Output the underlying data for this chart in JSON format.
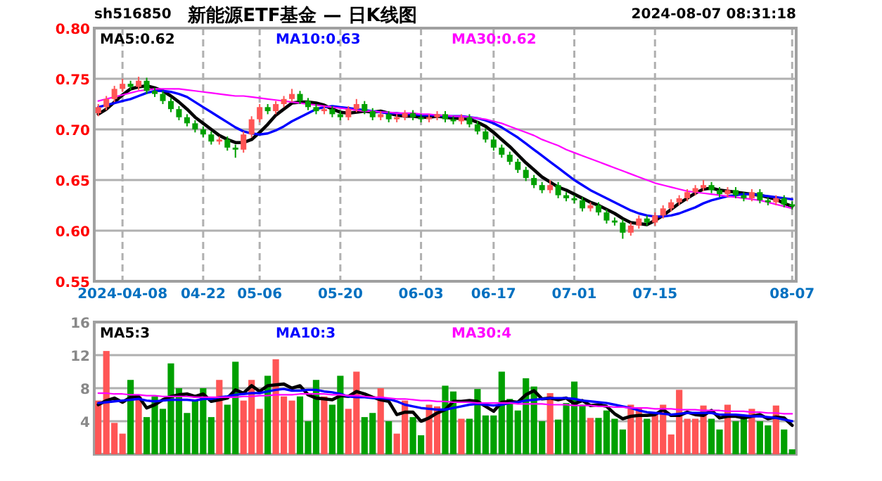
{
  "chart_data": [
    {
      "type": "candlestick",
      "title": "新能源ETF基金 — 日K线图",
      "annotations": [
        "sh516850",
        "2024-08-07 08:31:18"
      ],
      "categories": [
        null,
        null,
        null,
        "2024-04-08",
        null,
        null,
        null,
        null,
        null,
        null,
        null,
        null,
        null,
        "04-22",
        null,
        null,
        null,
        null,
        null,
        null,
        "05-06",
        null,
        null,
        null,
        null,
        null,
        null,
        null,
        null,
        null,
        "05-20",
        null,
        null,
        null,
        null,
        null,
        null,
        null,
        null,
        null,
        "06-03",
        null,
        null,
        null,
        null,
        null,
        null,
        null,
        null,
        "06-17",
        null,
        null,
        null,
        null,
        null,
        null,
        null,
        null,
        null,
        "07-01",
        null,
        null,
        null,
        null,
        null,
        null,
        null,
        null,
        null,
        "07-15",
        null,
        null,
        null,
        null,
        null,
        null,
        null,
        null,
        null,
        null,
        null,
        null,
        null,
        null,
        null,
        null,
        "08-07"
      ],
      "ohlc": [
        [
          0.716,
          0.725,
          0.713,
          0.722
        ],
        [
          0.722,
          0.733,
          0.719,
          0.73
        ],
        [
          0.73,
          0.743,
          0.727,
          0.74
        ],
        [
          0.74,
          0.75,
          0.737,
          0.745
        ],
        [
          0.745,
          0.748,
          0.739,
          0.742
        ],
        [
          0.742,
          0.752,
          0.739,
          0.748
        ],
        [
          0.748,
          0.751,
          0.735,
          0.738
        ],
        [
          0.738,
          0.741,
          0.732,
          0.735
        ],
        [
          0.735,
          0.738,
          0.725,
          0.728
        ],
        [
          0.728,
          0.731,
          0.717,
          0.72
        ],
        [
          0.72,
          0.723,
          0.709,
          0.712
        ],
        [
          0.712,
          0.715,
          0.703,
          0.706
        ],
        [
          0.706,
          0.709,
          0.697,
          0.7
        ],
        [
          0.7,
          0.703,
          0.692,
          0.695
        ],
        [
          0.695,
          0.698,
          0.685,
          0.688
        ],
        [
          0.688,
          0.693,
          0.685,
          0.69
        ],
        [
          0.69,
          0.693,
          0.679,
          0.682
        ],
        [
          0.682,
          0.685,
          0.672,
          0.68
        ],
        [
          0.68,
          0.698,
          0.677,
          0.695
        ],
        [
          0.695,
          0.713,
          0.692,
          0.71
        ],
        [
          0.71,
          0.725,
          0.707,
          0.722
        ],
        [
          0.722,
          0.725,
          0.715,
          0.718
        ],
        [
          0.718,
          0.728,
          0.715,
          0.725
        ],
        [
          0.725,
          0.733,
          0.722,
          0.73
        ],
        [
          0.73,
          0.74,
          0.727,
          0.735
        ],
        [
          0.735,
          0.738,
          0.725,
          0.728
        ],
        [
          0.728,
          0.731,
          0.719,
          0.722
        ],
        [
          0.722,
          0.725,
          0.715,
          0.718
        ],
        [
          0.718,
          0.723,
          0.715,
          0.72
        ],
        [
          0.72,
          0.723,
          0.712,
          0.715
        ],
        [
          0.715,
          0.718,
          0.709,
          0.712
        ],
        [
          0.712,
          0.723,
          0.709,
          0.72
        ],
        [
          0.72,
          0.73,
          0.717,
          0.725
        ],
        [
          0.725,
          0.728,
          0.715,
          0.718
        ],
        [
          0.718,
          0.721,
          0.709,
          0.712
        ],
        [
          0.712,
          0.718,
          0.709,
          0.715
        ],
        [
          0.715,
          0.718,
          0.707,
          0.71
        ],
        [
          0.71,
          0.715,
          0.707,
          0.712
        ],
        [
          0.712,
          0.719,
          0.709,
          0.716
        ],
        [
          0.716,
          0.719,
          0.709,
          0.712
        ],
        [
          0.712,
          0.715,
          0.707,
          0.71
        ],
        [
          0.71,
          0.715,
          0.707,
          0.712
        ],
        [
          0.712,
          0.718,
          0.709,
          0.715
        ],
        [
          0.715,
          0.718,
          0.707,
          0.71
        ],
        [
          0.71,
          0.713,
          0.705,
          0.708
        ],
        [
          0.708,
          0.715,
          0.705,
          0.712
        ],
        [
          0.712,
          0.715,
          0.702,
          0.705
        ],
        [
          0.705,
          0.708,
          0.695,
          0.698
        ],
        [
          0.698,
          0.701,
          0.687,
          0.69
        ],
        [
          0.69,
          0.693,
          0.679,
          0.682
        ],
        [
          0.682,
          0.685,
          0.672,
          0.675
        ],
        [
          0.675,
          0.678,
          0.665,
          0.668
        ],
        [
          0.668,
          0.671,
          0.657,
          0.66
        ],
        [
          0.66,
          0.663,
          0.649,
          0.652
        ],
        [
          0.652,
          0.655,
          0.642,
          0.645
        ],
        [
          0.645,
          0.648,
          0.637,
          0.64
        ],
        [
          0.64,
          0.65,
          0.637,
          0.645
        ],
        [
          0.645,
          0.648,
          0.632,
          0.635
        ],
        [
          0.635,
          0.638,
          0.629,
          0.632
        ],
        [
          0.632,
          0.635,
          0.627,
          0.63
        ],
        [
          0.63,
          0.633,
          0.619,
          0.622
        ],
        [
          0.622,
          0.628,
          0.619,
          0.625
        ],
        [
          0.625,
          0.628,
          0.615,
          0.618
        ],
        [
          0.618,
          0.621,
          0.607,
          0.61
        ],
        [
          0.61,
          0.613,
          0.605,
          0.608
        ],
        [
          0.608,
          0.611,
          0.592,
          0.598
        ],
        [
          0.598,
          0.608,
          0.595,
          0.605
        ],
        [
          0.605,
          0.615,
          0.602,
          0.612
        ],
        [
          0.612,
          0.615,
          0.605,
          0.608
        ],
        [
          0.608,
          0.618,
          0.605,
          0.615
        ],
        [
          0.615,
          0.625,
          0.612,
          0.622
        ],
        [
          0.622,
          0.631,
          0.619,
          0.628
        ],
        [
          0.628,
          0.635,
          0.625,
          0.632
        ],
        [
          0.632,
          0.641,
          0.629,
          0.638
        ],
        [
          0.638,
          0.645,
          0.635,
          0.642
        ],
        [
          0.642,
          0.65,
          0.639,
          0.645
        ],
        [
          0.645,
          0.648,
          0.637,
          0.64
        ],
        [
          0.64,
          0.643,
          0.633,
          0.636
        ],
        [
          0.636,
          0.643,
          0.633,
          0.64
        ],
        [
          0.64,
          0.643,
          0.632,
          0.635
        ],
        [
          0.635,
          0.638,
          0.629,
          0.632
        ],
        [
          0.632,
          0.641,
          0.629,
          0.638
        ],
        [
          0.638,
          0.641,
          0.627,
          0.63
        ],
        [
          0.63,
          0.633,
          0.625,
          0.628
        ],
        [
          0.628,
          0.635,
          0.625,
          0.632
        ],
        [
          0.632,
          0.635,
          0.623,
          0.626
        ],
        [
          0.626,
          0.629,
          0.621,
          0.624
        ]
      ],
      "series": [
        {
          "type": "line",
          "name": "MA5:0.62",
          "color": "#000000",
          "values": [
            0.715,
            0.72,
            0.727,
            0.734,
            0.74,
            0.742,
            0.743,
            0.741,
            0.738,
            0.733,
            0.727,
            0.72,
            0.712,
            0.706,
            0.7,
            0.694,
            0.69,
            0.687,
            0.687,
            0.69,
            0.697,
            0.705,
            0.714,
            0.72,
            0.726,
            0.727,
            0.727,
            0.726,
            0.724,
            0.72,
            0.717,
            0.716,
            0.717,
            0.718,
            0.717,
            0.718,
            0.716,
            0.714,
            0.713,
            0.713,
            0.712,
            0.712,
            0.713,
            0.712,
            0.711,
            0.711,
            0.71,
            0.707,
            0.703,
            0.697,
            0.69,
            0.683,
            0.675,
            0.667,
            0.66,
            0.653,
            0.648,
            0.643,
            0.64,
            0.636,
            0.632,
            0.628,
            0.625,
            0.621,
            0.617,
            0.612,
            0.608,
            0.607,
            0.606,
            0.61,
            0.615,
            0.621,
            0.627,
            0.632,
            0.637,
            0.641,
            0.642,
            0.64,
            0.639,
            0.638,
            0.637,
            0.636,
            0.635,
            0.633,
            0.631,
            0.627,
            0.624
          ]
        },
        {
          "type": "line",
          "name": "MA10:0.63",
          "color": "#0000ff",
          "values": [
            0.722,
            0.724,
            0.726,
            0.728,
            0.73,
            0.733,
            0.736,
            0.738,
            0.738,
            0.737,
            0.735,
            0.732,
            0.727,
            0.722,
            0.717,
            0.712,
            0.707,
            0.702,
            0.698,
            0.696,
            0.695,
            0.696,
            0.699,
            0.703,
            0.708,
            0.712,
            0.716,
            0.72,
            0.722,
            0.723,
            0.722,
            0.721,
            0.72,
            0.719,
            0.718,
            0.717,
            0.716,
            0.716,
            0.715,
            0.715,
            0.714,
            0.714,
            0.714,
            0.713,
            0.713,
            0.713,
            0.712,
            0.711,
            0.709,
            0.706,
            0.702,
            0.697,
            0.692,
            0.686,
            0.68,
            0.674,
            0.668,
            0.662,
            0.656,
            0.65,
            0.645,
            0.64,
            0.636,
            0.632,
            0.628,
            0.624,
            0.62,
            0.617,
            0.615,
            0.614,
            0.614,
            0.615,
            0.617,
            0.62,
            0.623,
            0.627,
            0.63,
            0.632,
            0.634,
            0.635,
            0.636,
            0.636,
            0.635,
            0.634,
            0.633,
            0.632,
            0.631
          ]
        },
        {
          "type": "line",
          "name": "MA30:0.62",
          "color": "#ff00ff",
          "values": [
            0.728,
            0.73,
            0.732,
            0.734,
            0.736,
            0.738,
            0.739,
            0.74,
            0.74,
            0.74,
            0.74,
            0.739,
            0.738,
            0.737,
            0.736,
            0.735,
            0.734,
            0.733,
            0.733,
            0.732,
            0.731,
            0.73,
            0.729,
            0.728,
            0.727,
            0.726,
            0.725,
            0.724,
            0.723,
            0.722,
            0.721,
            0.72,
            0.719,
            0.718,
            0.718,
            0.717,
            0.717,
            0.716,
            0.716,
            0.716,
            0.715,
            0.715,
            0.714,
            0.714,
            0.713,
            0.713,
            0.712,
            0.711,
            0.71,
            0.708,
            0.706,
            0.703,
            0.7,
            0.697,
            0.694,
            0.69,
            0.687,
            0.684,
            0.68,
            0.677,
            0.674,
            0.671,
            0.668,
            0.665,
            0.662,
            0.659,
            0.656,
            0.653,
            0.65,
            0.647,
            0.645,
            0.643,
            0.641,
            0.639,
            0.638,
            0.637,
            0.636,
            0.635,
            0.634,
            0.633,
            0.632,
            0.631,
            0.63,
            0.628,
            0.626,
            0.624,
            0.622
          ]
        }
      ],
      "ylim": [
        0.55,
        0.8
      ],
      "yticks": [
        {
          "value": 0.55,
          "label": "0.55"
        },
        {
          "value": 0.6,
          "label": "0.60"
        },
        {
          "value": 0.65,
          "label": "0.65"
        },
        {
          "value": 0.7,
          "label": "0.70"
        },
        {
          "value": 0.75,
          "label": "0.75"
        },
        {
          "value": 0.8,
          "label": "0.80"
        }
      ],
      "grid": true,
      "legend": "top"
    },
    {
      "type": "bar",
      "categories": [
        null,
        null,
        null,
        null,
        null,
        null,
        null,
        null,
        null,
        null,
        null,
        null,
        null,
        null,
        null,
        null,
        null,
        null,
        null,
        null,
        null,
        null,
        null,
        null,
        null,
        null,
        null,
        null,
        null,
        null,
        null,
        null,
        null,
        null,
        null,
        null,
        null,
        null,
        null,
        null,
        null,
        null,
        null,
        null,
        null,
        null,
        null,
        null,
        null,
        null,
        null,
        null,
        null,
        null,
        null,
        null,
        null,
        null,
        null,
        null,
        null,
        null,
        null,
        null,
        null,
        null,
        null,
        null,
        null,
        null,
        null,
        null,
        null,
        null,
        null,
        null,
        null,
        null,
        null,
        null,
        null,
        null,
        null,
        null,
        null,
        null,
        null
      ],
      "values": [
        6.5,
        12.5,
        3.8,
        2.5,
        9,
        7,
        4.5,
        7,
        5.5,
        11,
        8,
        5,
        6.5,
        8,
        4.5,
        9,
        6,
        11.2,
        6.5,
        9,
        5.5,
        9.5,
        11.5,
        7,
        6.5,
        7,
        4,
        9,
        7,
        6,
        9.5,
        5.5,
        10,
        4.5,
        5,
        8,
        4,
        2.5,
        6.5,
        4.5,
        2.3,
        6,
        5.8,
        8.3,
        7.6,
        4.3,
        4.3,
        7.9,
        4.7,
        4.7,
        10,
        6.7,
        5.3,
        9.2,
        8.2,
        4,
        7.4,
        4.2,
        6.2,
        8.8,
        6,
        4.4,
        4.4,
        5.3,
        4.3,
        3,
        6,
        5.7,
        4.3,
        5,
        6,
        2.4,
        7.8,
        4.3,
        4.3,
        5.9,
        4.3,
        3,
        6,
        4,
        4.5,
        5.5,
        4,
        3.5,
        5.9,
        3,
        0.6
      ],
      "colors": [
        "#ff5555",
        "#ff5555",
        "#ff5555",
        "#ff5555",
        "#00a000",
        "#ff5555",
        "#00a000",
        "#00a000",
        "#00a000",
        "#00a000",
        "#00a000",
        "#00a000",
        "#00a000",
        "#00a000",
        "#00a000",
        "#ff5555",
        "#00a000",
        "#00a000",
        "#ff5555",
        "#ff5555",
        "#ff5555",
        "#00a000",
        "#ff5555",
        "#ff5555",
        "#ff5555",
        "#00a000",
        "#00a000",
        "#00a000",
        "#ff5555",
        "#00a000",
        "#00a000",
        "#ff5555",
        "#ff5555",
        "#00a000",
        "#00a000",
        "#ff5555",
        "#00a000",
        "#ff5555",
        "#ff5555",
        "#00a000",
        "#00a000",
        "#ff5555",
        "#ff5555",
        "#00a000",
        "#00a000",
        "#ff5555",
        "#00a000",
        "#00a000",
        "#00a000",
        "#00a000",
        "#00a000",
        "#00a000",
        "#00a000",
        "#00a000",
        "#00a000",
        "#00a000",
        "#ff5555",
        "#00a000",
        "#00a000",
        "#00a000",
        "#00a000",
        "#ff5555",
        "#00a000",
        "#00a000",
        "#00a000",
        "#00a000",
        "#ff5555",
        "#ff5555",
        "#00a000",
        "#ff5555",
        "#ff5555",
        "#ff5555",
        "#ff5555",
        "#ff5555",
        "#ff5555",
        "#ff5555",
        "#00a000",
        "#00a000",
        "#ff5555",
        "#00a000",
        "#00a000",
        "#ff5555",
        "#00a000",
        "#00a000",
        "#ff5555",
        "#00a000",
        "#00a000"
      ],
      "series": [
        {
          "type": "line",
          "name": "MA5:3",
          "color": "#000000",
          "values": [
            6,
            6.5,
            6.8,
            6.3,
            6.9,
            7,
            5.6,
            6,
            6.6,
            7,
            7.2,
            7.3,
            7,
            7.3,
            6.4,
            6.6,
            6.8,
            7.8,
            7.4,
            8.3,
            7.6,
            8.3,
            8.4,
            8.5,
            8,
            8.3,
            7.2,
            6.8,
            6.7,
            6.6,
            7.1,
            7,
            7.6,
            7.3,
            6.9,
            6.6,
            6.4,
            4.8,
            5.1,
            5.1,
            4,
            4.4,
            5,
            5.4,
            6.4,
            6.4,
            6.5,
            6.4,
            5.8,
            5.2,
            6.3,
            6.4,
            6.3,
            7.2,
            7.7,
            6.7,
            6.8,
            6.6,
            6.8,
            6.1,
            6.5,
            5.9,
            6,
            5.8,
            4.9,
            4.3,
            4.6,
            4.7,
            4.7,
            4.8,
            5.4,
            4.7,
            4.7,
            5.1,
            4.8,
            4.7,
            5.3,
            4.4,
            4.6,
            4.6,
            4.4,
            4.6,
            4.8,
            4.3,
            4.5,
            4.4,
            3.5
          ]
        },
        {
          "type": "line",
          "name": "MA10:3",
          "color": "#0000ff",
          "values": [
            6.2,
            6.3,
            6.4,
            6.5,
            6.6,
            6.7,
            6.5,
            6.4,
            6.5,
            6.6,
            6.6,
            6.6,
            6.5,
            6.7,
            6.7,
            6.9,
            7,
            7.2,
            7.3,
            7.4,
            7.4,
            7.6,
            7.8,
            7.9,
            7.7,
            7.7,
            7.8,
            7.8,
            7.6,
            7.5,
            7.3,
            7,
            6.9,
            6.9,
            6.8,
            6.8,
            6.7,
            6.4,
            6,
            5.8,
            5.6,
            5.5,
            5.4,
            5.4,
            5.6,
            5.8,
            6,
            6.1,
            6,
            5.9,
            6,
            6.2,
            6.3,
            6.5,
            6.6,
            6.7,
            6.8,
            6.8,
            6.8,
            6.7,
            6.5,
            6.4,
            6.3,
            6.2,
            6,
            5.8,
            5.6,
            5.3,
            5.1,
            5,
            4.9,
            4.8,
            4.9,
            5,
            5,
            5,
            5,
            4.8,
            4.8,
            4.8,
            4.7,
            4.6,
            4.6,
            4.5,
            4.4,
            4.2,
            4
          ]
        },
        {
          "type": "line",
          "name": "MA30:4",
          "color": "#ff00ff",
          "values": [
            7.4,
            7.4,
            7.3,
            7.3,
            7.2,
            7.2,
            7.1,
            7.1,
            7,
            7,
            7,
            7,
            6.9,
            6.9,
            6.9,
            6.9,
            6.9,
            6.9,
            7,
            7,
            7.1,
            7.1,
            7.2,
            7.2,
            7.2,
            7.3,
            7.3,
            7.3,
            7.3,
            7.2,
            7.2,
            7.1,
            7.1,
            7,
            6.9,
            6.9,
            6.8,
            6.7,
            6.7,
            6.6,
            6.5,
            6.5,
            6.4,
            6.4,
            6.3,
            6.3,
            6.3,
            6.2,
            6.2,
            6.2,
            6.2,
            6.2,
            6.1,
            6.1,
            6.1,
            6.1,
            6,
            6,
            6,
            5.9,
            5.9,
            5.9,
            5.8,
            5.8,
            5.7,
            5.7,
            5.6,
            5.6,
            5.6,
            5.5,
            5.5,
            5.5,
            5.4,
            5.4,
            5.4,
            5.3,
            5.3,
            5.3,
            5.2,
            5.2,
            5.2,
            5.1,
            5.1,
            5,
            5,
            4.9,
            4.9
          ]
        }
      ],
      "ylim": [
        0,
        16
      ],
      "yticks": [
        4,
        8,
        12,
        16
      ],
      "grid": true,
      "legend": "top"
    }
  ]
}
